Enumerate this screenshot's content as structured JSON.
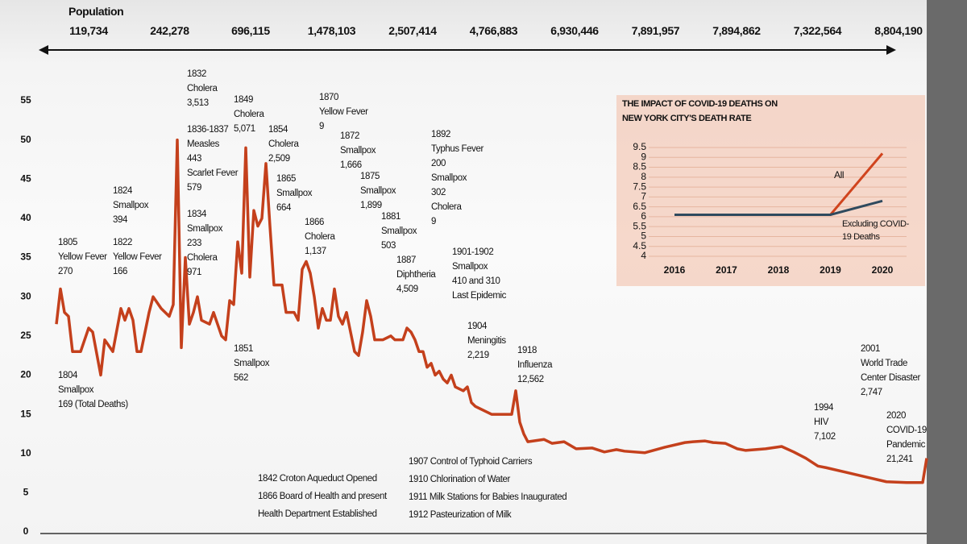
{
  "population": {
    "title": "Population",
    "values": [
      "119,734",
      "242,278",
      "696,115",
      "1,478,103",
      "2,507,414",
      "4,766,883",
      "6,930,446",
      "7,891,957",
      "7,894,862",
      "7,322,564",
      "8,804,190"
    ]
  },
  "annotations": [
    [
      "1805",
      "Yellow Fever",
      "270"
    ],
    [
      "1804",
      "Smallpox",
      "169 (Total Deaths)"
    ],
    [
      "1824",
      "Smallpox",
      "394"
    ],
    [
      "1822",
      "Yellow Fever",
      "166"
    ],
    [
      "1832",
      "Cholera",
      "3,513"
    ],
    [
      "1836-1837",
      "Measles",
      "443",
      "Scarlet Fever",
      "579"
    ],
    [
      "1834",
      "Smallpox",
      "233",
      "Cholera",
      "971"
    ],
    [
      "1849",
      "Cholera",
      "5,071"
    ],
    [
      "1851",
      "Smallpox",
      "562"
    ],
    [
      "1854",
      "Cholera",
      "2,509"
    ],
    [
      "1865",
      "Smallpox",
      "664"
    ],
    [
      "1866",
      "Cholera",
      "1,137"
    ],
    [
      "1870",
      "Yellow Fever",
      "9"
    ],
    [
      "1872",
      "Smallpox",
      "1,666"
    ],
    [
      "1875",
      "Smallpox",
      "1,899"
    ],
    [
      "1881",
      "Smallpox",
      "503"
    ],
    [
      "1887",
      "Diphtheria",
      "4,509"
    ],
    [
      "1892",
      "Typhus Fever",
      "200",
      "Smallpox",
      "302",
      "Cholera",
      "9"
    ],
    [
      "1901-1902",
      "Smallpox",
      "410 and 310",
      "Last Epidemic"
    ],
    [
      "1904",
      "Meningitis",
      "2,219"
    ],
    [
      "1918",
      "Influenza",
      "12,562"
    ],
    [
      "1994",
      "HIV",
      "7,102"
    ],
    [
      "2001",
      "World Trade",
      "Center Disaster",
      "2,747"
    ],
    [
      "2020",
      "COVID-19",
      "Pandemic",
      "21,241"
    ]
  ],
  "events": [
    [
      "1842 Croton Aqueduct Opened",
      "1866 Board of Health and present",
      "Health Department Established"
    ],
    [
      "1907 Control of Typhoid Carriers",
      "1910 Chlorination of Water",
      "1911 Milk Stations for Babies Inaugurated",
      "1912 Pasteurization of Milk"
    ]
  ],
  "chart_data": [
    {
      "type": "line",
      "color": "#c4401c",
      "xlim": [
        1800,
        2020
      ],
      "ylim": [
        0,
        55
      ],
      "yticks": [
        0,
        5,
        10,
        15,
        20,
        25,
        30,
        35,
        40,
        45,
        50,
        55
      ],
      "x": [
        1804,
        1805,
        1806,
        1807,
        1808,
        1810,
        1812,
        1813,
        1815,
        1816,
        1818,
        1820,
        1821,
        1822,
        1823,
        1824,
        1825,
        1827,
        1828,
        1830,
        1832,
        1833,
        1834,
        1835,
        1836,
        1837,
        1838,
        1839,
        1840,
        1842,
        1843,
        1845,
        1846,
        1847,
        1848,
        1849,
        1850,
        1851,
        1852,
        1853,
        1854,
        1855,
        1856,
        1857,
        1858,
        1860,
        1861,
        1863,
        1864,
        1865,
        1866,
        1867,
        1868,
        1869,
        1870,
        1871,
        1872,
        1873,
        1874,
        1875,
        1876,
        1877,
        1878,
        1879,
        1880,
        1881,
        1882,
        1883,
        1885,
        1887,
        1888,
        1890,
        1891,
        1892,
        1893,
        1894,
        1895,
        1896,
        1897,
        1898,
        1899,
        1900,
        1901,
        1902,
        1903,
        1905,
        1906,
        1907,
        1908,
        1910,
        1912,
        1914,
        1917,
        1918,
        1919,
        1920,
        1921,
        1925,
        1927,
        1930,
        1933,
        1937,
        1940,
        1943,
        1945,
        1950,
        1955,
        1960,
        1962,
        1965,
        1967,
        1970,
        1973,
        1975,
        1980,
        1984,
        1987,
        1990,
        1993,
        1995,
        2000,
        2005,
        2010,
        2015,
        2019,
        2020
      ],
      "values": [
        26.5,
        31,
        28,
        27.5,
        23,
        23,
        26,
        25.5,
        20,
        24.5,
        23,
        28.5,
        27,
        28.5,
        27,
        23,
        23,
        28,
        30,
        28.5,
        27.5,
        29,
        50,
        23.5,
        35,
        26.5,
        28,
        30,
        27,
        26.5,
        28,
        25,
        24.5,
        29.5,
        29,
        37,
        33,
        49,
        32.5,
        41,
        39,
        40,
        47,
        39,
        31.5,
        31.5,
        28,
        28,
        27,
        33.5,
        34.5,
        33,
        30,
        26,
        28.5,
        27,
        27,
        31,
        27.5,
        26.5,
        28,
        25.5,
        23,
        22.5,
        25.5,
        29.5,
        27.5,
        24.5,
        24.5,
        25,
        24.5,
        24.5,
        26,
        25.5,
        24.5,
        23,
        23,
        21,
        21.5,
        20,
        20.5,
        19.5,
        19,
        20,
        18.5,
        18,
        18.5,
        16.5,
        16,
        15.5,
        15,
        15,
        15,
        18,
        14,
        12.5,
        11.5,
        11.8,
        11.3,
        11.5,
        10.6,
        10.7,
        10.2,
        10.5,
        10.3,
        10.1,
        10.8,
        11.4,
        11.5,
        11.6,
        11.4,
        11.3,
        10.6,
        10.4,
        10.6,
        10.9,
        10.2,
        9.4,
        8.4,
        8.2,
        7.6,
        7,
        6.4,
        6.3,
        6.3,
        9.4
      ]
    },
    {
      "type": "line",
      "title": [
        "THE IMPACT OF COVID-19 DEATHS ON",
        "NEW YORK CITY'S DEATH RATE"
      ],
      "categories": [
        "2016",
        "2017",
        "2018",
        "2019",
        "2020"
      ],
      "ylim": [
        4,
        9.5
      ],
      "yticks": [
        4,
        4.5,
        5,
        5.5,
        6,
        6.5,
        7,
        7.5,
        8,
        8.5,
        9,
        9.5
      ],
      "series": [
        {
          "name": "All",
          "color": "#d0441e",
          "values": [
            6.1,
            6.1,
            6.1,
            6.1,
            9.2
          ]
        },
        {
          "name": "Excluding COVID-19 Deaths",
          "color": "#2f4a5e",
          "values": [
            6.1,
            6.1,
            6.1,
            6.1,
            6.8
          ]
        }
      ]
    }
  ]
}
